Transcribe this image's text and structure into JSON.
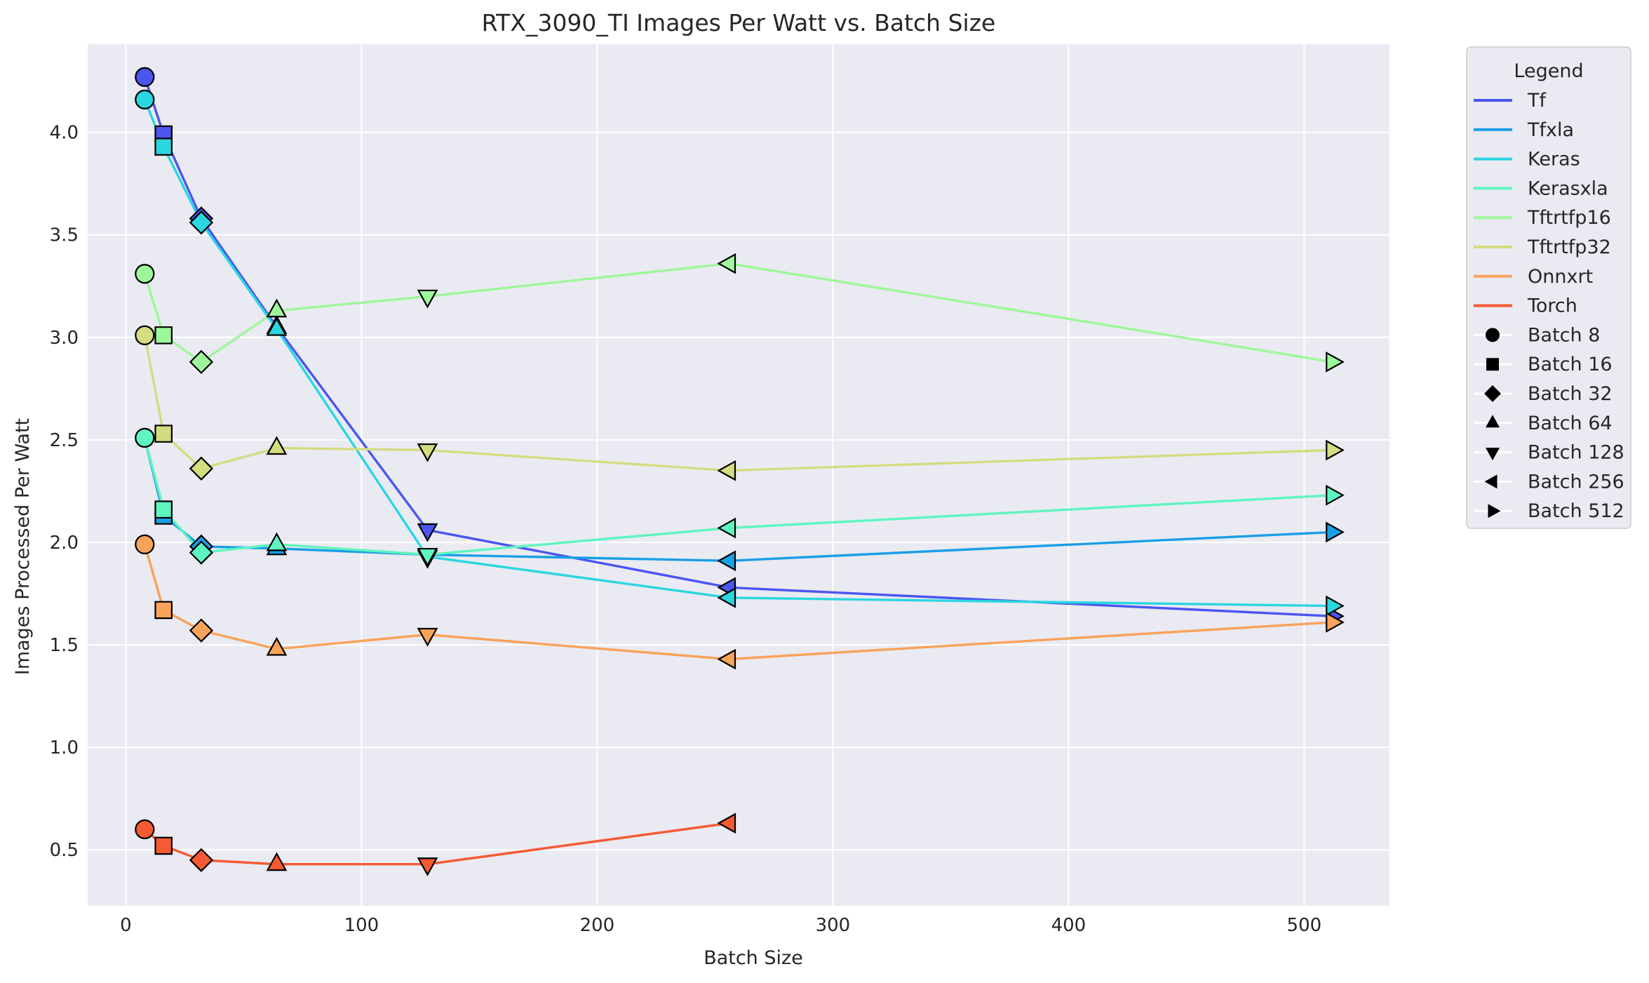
{
  "chart_data": {
    "type": "line",
    "title": "RTX_3090_TI Images Per Watt vs. Batch Size",
    "xlabel": "Batch Size",
    "ylabel": "Images Processed Per Watt",
    "xlim": [
      -16.2,
      536.2
    ],
    "ylim": [
      0.227,
      4.43
    ],
    "x_ticks": [
      0,
      100,
      200,
      300,
      400,
      500
    ],
    "y_ticks": [
      0.5,
      1.0,
      1.5,
      2.0,
      2.5,
      3.0,
      3.5,
      4.0
    ],
    "x_tick_labels": [
      "0",
      "100",
      "200",
      "300",
      "400",
      "500"
    ],
    "y_tick_labels": [
      "0.5",
      "1.0",
      "1.5",
      "2.0",
      "2.5",
      "3.0",
      "3.5",
      "4.0"
    ],
    "grid": true,
    "legend_position": "outside-right",
    "legend_title": "Legend",
    "x": [
      8,
      16,
      32,
      64,
      128,
      256,
      512
    ],
    "series": [
      {
        "name": "Tf",
        "color": "#4b55f0",
        "values": [
          4.27,
          3.99,
          3.58,
          3.05,
          2.06,
          1.78,
          1.64
        ]
      },
      {
        "name": "Tfxla",
        "color": "#1a9ee6",
        "values": [
          2.51,
          2.13,
          1.98,
          1.97,
          1.94,
          1.91,
          2.05
        ]
      },
      {
        "name": "Keras",
        "color": "#2ad6e0",
        "values": [
          4.16,
          3.93,
          3.56,
          3.04,
          1.93,
          1.73,
          1.69
        ]
      },
      {
        "name": "Kerasxla",
        "color": "#5ef5c0",
        "values": [
          2.51,
          2.16,
          1.95,
          1.99,
          1.94,
          2.07,
          2.23
        ]
      },
      {
        "name": "Tftrtfp16",
        "color": "#9ef79a",
        "values": [
          3.31,
          3.01,
          2.88,
          3.13,
          3.2,
          3.36,
          2.88
        ]
      },
      {
        "name": "Tftrtfp32",
        "color": "#d4dc80",
        "values": [
          3.01,
          2.53,
          2.36,
          2.46,
          2.45,
          2.35,
          2.45
        ]
      },
      {
        "name": "Onnxrt",
        "color": "#f8a35a",
        "values": [
          1.99,
          1.67,
          1.57,
          1.48,
          1.55,
          1.43,
          1.61
        ]
      },
      {
        "name": "Torch",
        "color": "#f55a33",
        "values": [
          0.6,
          0.52,
          0.45,
          0.43,
          0.43,
          0.63,
          null
        ]
      }
    ],
    "marker_legend": [
      {
        "name": "Batch 8",
        "marker": "circle"
      },
      {
        "name": "Batch 16",
        "marker": "square"
      },
      {
        "name": "Batch 32",
        "marker": "diamond"
      },
      {
        "name": "Batch 64",
        "marker": "triangle-up"
      },
      {
        "name": "Batch 128",
        "marker": "triangle-down"
      },
      {
        "name": "Batch 256",
        "marker": "triangle-left"
      },
      {
        "name": "Batch 512",
        "marker": "triangle-right"
      }
    ],
    "plot_background": "#eaeaf2",
    "grid_color": "#ffffff"
  }
}
